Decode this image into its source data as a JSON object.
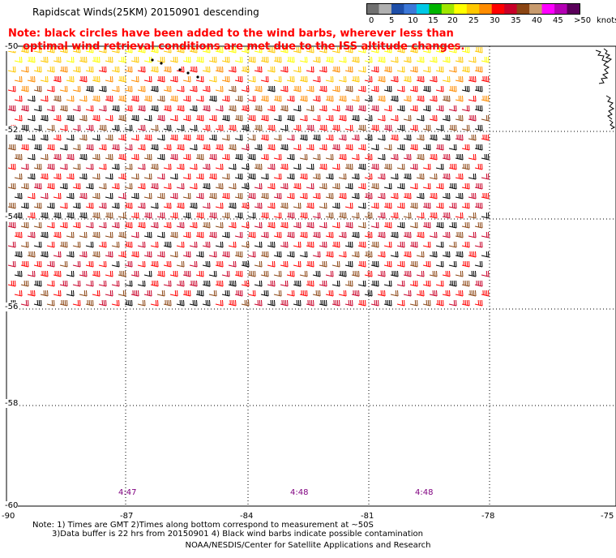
{
  "title": "Rapidscat Winds(25KM) 20150901 descending",
  "note": {
    "line1": "Note: black circles have been added to the wind barbs, wherever less than",
    "line2": "    optimal wind retrieval conditions are met due to the ISS altitude changes.",
    "color": "#ff0000"
  },
  "colorbar": {
    "colors": [
      "#707070",
      "#b0b0b0",
      "#1e4ea8",
      "#3c78d8",
      "#00c8e6",
      "#00b400",
      "#a0e600",
      "#ffff00",
      "#ffc800",
      "#ff8c00",
      "#ff0000",
      "#c80028",
      "#8b4513",
      "#c89b6e",
      "#ff00ff",
      "#b400b4",
      "#5a005a"
    ],
    "labels": [
      "0",
      "5",
      "10",
      "15",
      "20",
      "25",
      "30",
      "35",
      "40",
      "45",
      ">50"
    ],
    "units": "knots"
  },
  "lat_labels": [
    "-50",
    "-52",
    "-54",
    "-56",
    "-58",
    "-60"
  ],
  "lon_labels": [
    "-90",
    "-87",
    "-84",
    "-81",
    "-78",
    "-75"
  ],
  "time_labels": [
    "4:47",
    "4:48",
    "4:48"
  ],
  "footer": {
    "line1": "Note: 1) Times are GMT 2)Times along bottom correspond to measurement at ~50S",
    "line2": "3)Data buffer is 22 hrs from 20150901 4) Black wind barbs indicate possible contamination",
    "line3": "NOAA/NESDIS/Center for Satellite Applications and Research"
  }
}
